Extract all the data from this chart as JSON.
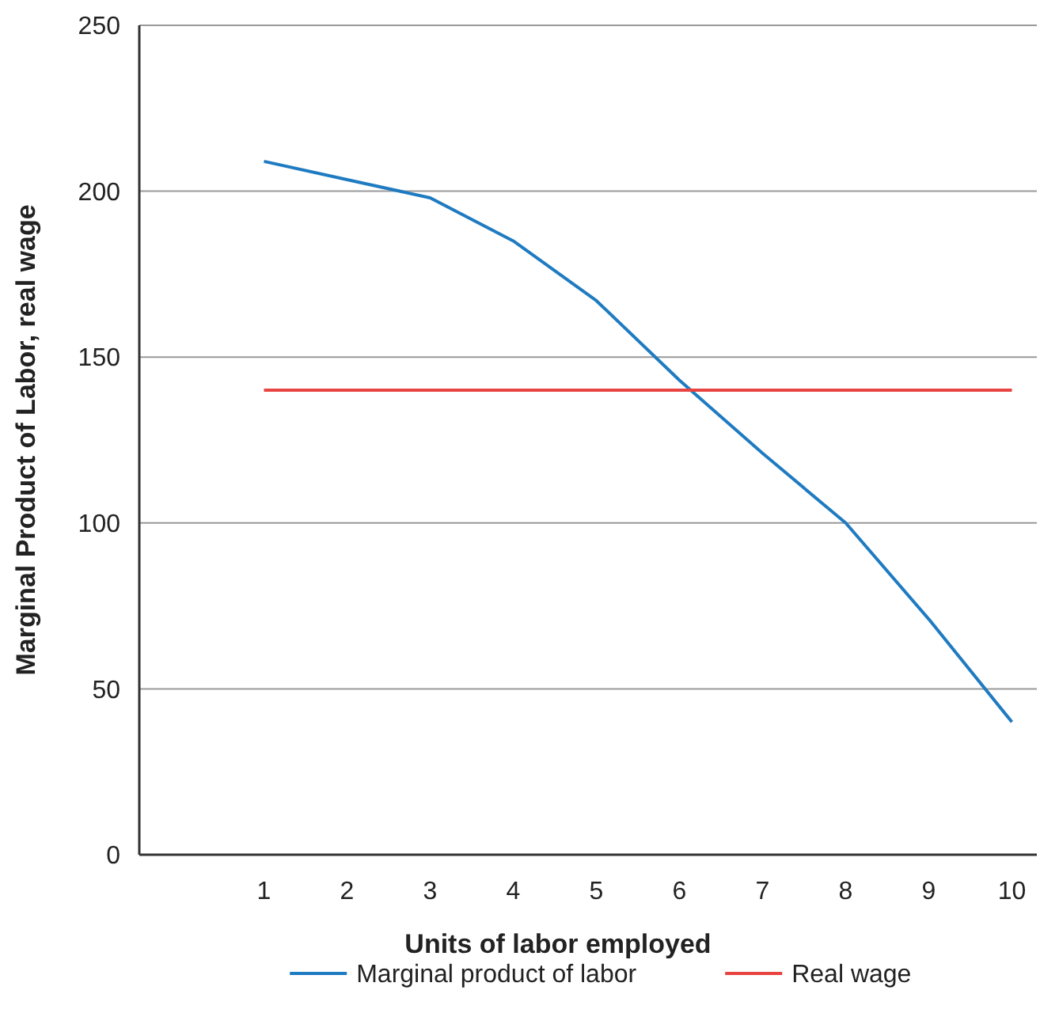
{
  "chart_data": {
    "type": "line",
    "xlabel": "Units of labor employed",
    "ylabel": "Marginal Product of Labor, real wage",
    "x": [
      1,
      2,
      3,
      4,
      5,
      6,
      7,
      8,
      9,
      10
    ],
    "series": [
      {
        "name": "Marginal product of labor",
        "color": "#1f7bc1",
        "values": [
          209,
          203.5,
          198,
          185,
          167,
          143,
          121,
          100,
          71,
          40
        ]
      },
      {
        "name": "Real wage",
        "color": "#e84340",
        "values": [
          140,
          140,
          140,
          140,
          140,
          140,
          140,
          140,
          140,
          140
        ]
      }
    ],
    "xlim": [
      -0.5,
      10.3
    ],
    "xticks": [
      1,
      2,
      3,
      4,
      5,
      6,
      7,
      8,
      9,
      10
    ],
    "ylim": [
      0,
      250
    ],
    "yticks": [
      0,
      50,
      100,
      150,
      200,
      250
    ],
    "grid": "y",
    "legend": "bottom",
    "marker": "none",
    "line_style": "solid"
  }
}
